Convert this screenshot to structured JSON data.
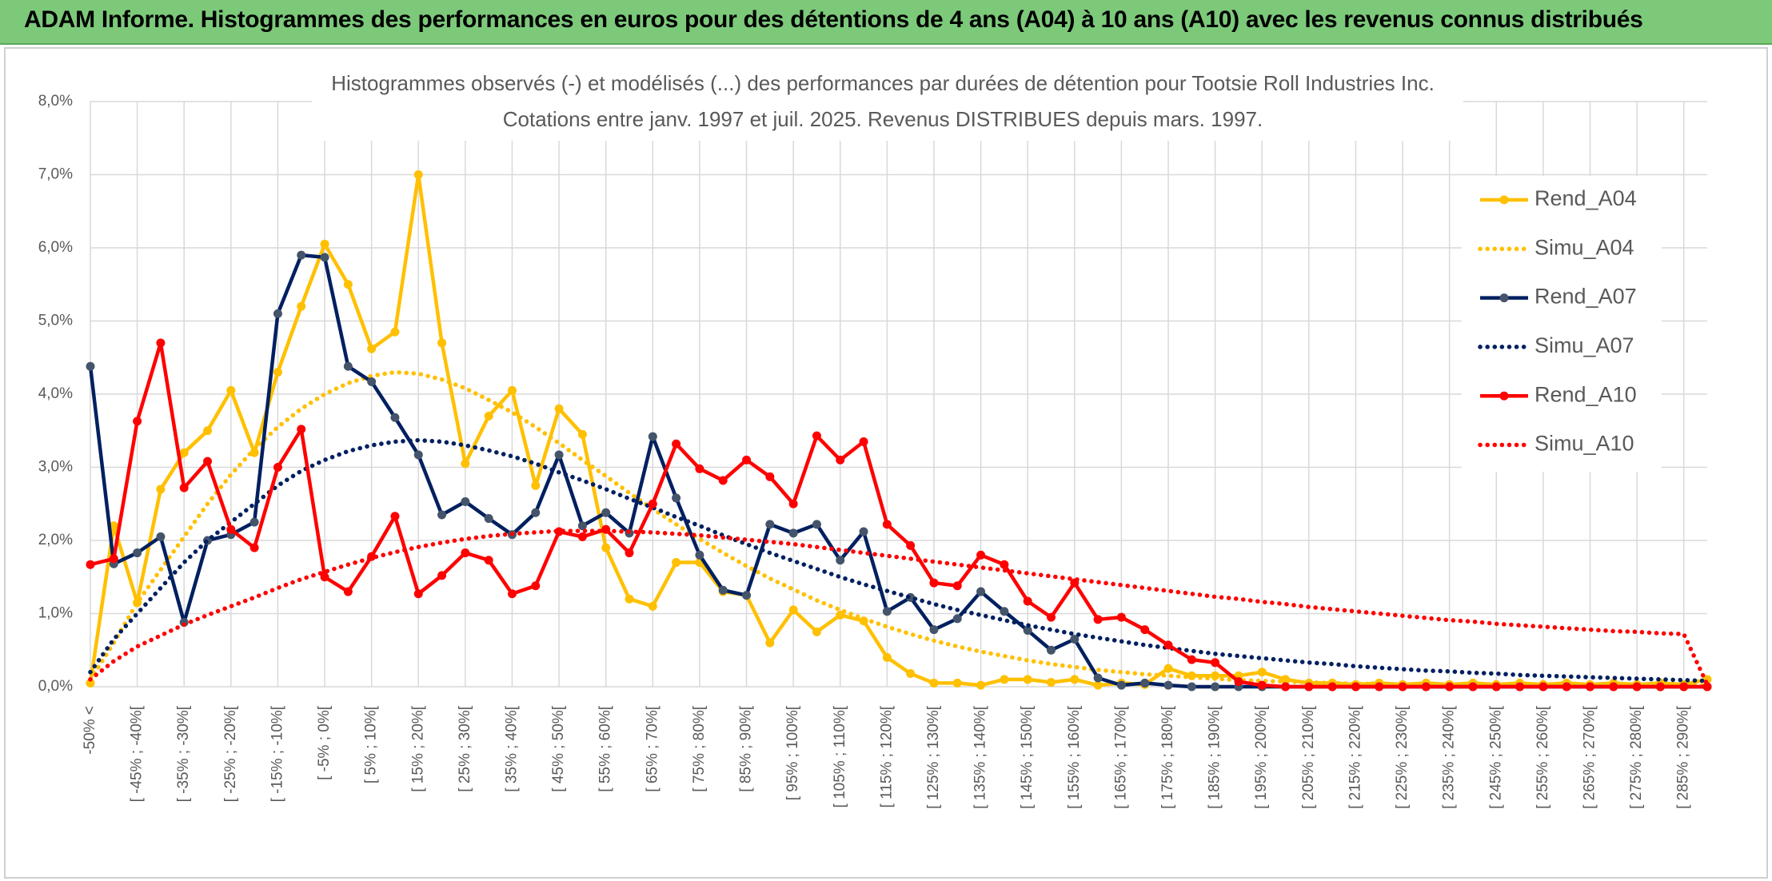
{
  "header": {
    "title": "ADAM Informe. Histogrammes des performances en euros pour des détentions de 4 ans (A04) à 10 ans (A10) avec les revenus connus distribués"
  },
  "chart_data": {
    "type": "line",
    "title": "Histogrammes observés (-) et modélisés (...) des performances par durées de détention pour Tootsie Roll Industries Inc.",
    "subtitle": "Cotations entre janv. 1997 et juil. 2025. Revenus DISTRIBUES depuis mars. 1997.",
    "categories": [
      "-50% <",
      null,
      "[ -45% ; -40%[",
      null,
      "[ -35% ; -30%[",
      null,
      "[ -25% ; -20%[",
      null,
      "[ -15% ; -10%[",
      null,
      "[ -5% ; 0%[",
      null,
      "[ 5% ; 10%[",
      null,
      "[ 15% ; 20%[",
      null,
      "[ 25% ; 30%[",
      null,
      "[ 35% ; 40%[",
      null,
      "[ 45% ; 50%[",
      null,
      "[ 55% ; 60%[",
      null,
      "[ 65% ; 70%[",
      null,
      "[ 75% ; 80%[",
      null,
      "[ 85% ; 90%[",
      null,
      "[ 95% ; 100%[",
      null,
      "[ 105% ; 110%[",
      null,
      "[ 115% ; 120%[",
      null,
      "[ 125% ; 130%[",
      null,
      "[ 135% ; 140%[",
      null,
      "[ 145% ; 150%[",
      null,
      "[ 155% ; 160%[",
      null,
      "[ 165% ; 170%[",
      null,
      "[ 175% ; 180%[",
      null,
      "[ 185% ; 190%[",
      null,
      "[ 195% ; 200%[",
      null,
      "[ 205% ; 210%[",
      null,
      "[ 215% ; 220%[",
      null,
      "[ 225% ; 230%[",
      null,
      "[ 235% ; 240%[",
      null,
      "[ 245% ; 250%[",
      null,
      "[ 255% ; 260%[",
      null,
      "[ 265% ; 270%[",
      null,
      "[ 275% ; 280%[",
      null,
      "[ 285% ; 290%[",
      null
    ],
    "ylim": [
      0,
      8
    ],
    "yticks": [
      {
        "value": 0,
        "label": "0,0%"
      },
      {
        "value": 1,
        "label": "1,0%"
      },
      {
        "value": 2,
        "label": "2,0%"
      },
      {
        "value": 3,
        "label": "3,0%"
      },
      {
        "value": 4,
        "label": "4,0%"
      },
      {
        "value": 5,
        "label": "5,0%"
      },
      {
        "value": 6,
        "label": "6,0%"
      },
      {
        "value": 7,
        "label": "7,0%"
      },
      {
        "value": 8,
        "label": "8,0%"
      }
    ],
    "grid": true,
    "legend": "right",
    "series": [
      {
        "name": "Rend_A04",
        "color": "#ffc000",
        "style": "solid",
        "markers": true,
        "values": [
          0.05,
          2.2,
          1.15,
          2.7,
          3.2,
          3.5,
          4.05,
          3.2,
          4.3,
          5.2,
          6.05,
          5.5,
          4.62,
          4.85,
          7.0,
          4.7,
          3.05,
          3.7,
          4.05,
          2.75,
          3.8,
          3.45,
          1.9,
          1.2,
          1.1,
          1.7,
          1.7,
          1.3,
          1.25,
          0.6,
          1.05,
          0.75,
          0.98,
          0.9,
          0.4,
          0.18,
          0.05,
          0.05,
          0.02,
          0.1,
          0.1,
          0.06,
          0.1,
          0.02,
          0.05,
          0.03,
          0.25,
          0.15,
          0.15,
          0.15,
          0.2,
          0.1,
          0.05,
          0.05,
          0.03,
          0.05,
          0.03,
          0.05,
          0.03,
          0.05,
          0.03,
          0.05,
          0.03,
          0.05,
          0.03,
          0.05,
          0.03,
          0.05,
          0.03,
          0.1
        ]
      },
      {
        "name": "Simu_A04",
        "color": "#ffc000",
        "style": "dotted",
        "markers": false,
        "values": [
          0.1,
          0.6,
          1.15,
          1.6,
          2.05,
          2.5,
          2.9,
          3.25,
          3.55,
          3.8,
          4.0,
          4.15,
          4.25,
          4.3,
          4.28,
          4.2,
          4.08,
          3.92,
          3.75,
          3.55,
          3.33,
          3.1,
          2.88,
          2.65,
          2.43,
          2.22,
          2.02,
          1.83,
          1.65,
          1.48,
          1.33,
          1.18,
          1.05,
          0.93,
          0.82,
          0.72,
          0.63,
          0.55,
          0.48,
          0.42,
          0.36,
          0.31,
          0.27,
          0.23,
          0.2,
          0.17,
          0.15,
          0.13,
          0.11,
          0.09,
          0.08,
          0.07,
          0.06,
          0.05,
          0.04,
          0.04,
          0.03,
          0.03,
          0.03,
          0.02,
          0.02,
          0.02,
          0.02,
          0.02,
          0.02,
          0.02,
          0.02,
          0.02,
          0.02,
          0.02
        ]
      },
      {
        "name": "Rend_A07",
        "color": "#002060",
        "style": "solid",
        "markers": true,
        "values": [
          4.38,
          1.68,
          1.83,
          2.05,
          0.88,
          2.0,
          2.08,
          2.25,
          5.1,
          5.9,
          5.87,
          4.38,
          4.17,
          3.68,
          3.17,
          2.35,
          2.53,
          2.3,
          2.08,
          2.38,
          3.17,
          2.2,
          2.38,
          2.1,
          3.42,
          2.58,
          1.8,
          1.32,
          1.25,
          2.22,
          2.1,
          2.22,
          1.73,
          2.12,
          1.03,
          1.22,
          0.78,
          0.93,
          1.3,
          1.03,
          0.77,
          0.5,
          0.65,
          0.12,
          0.02,
          0.05,
          0.02,
          0,
          0,
          0,
          0,
          0,
          0,
          0,
          0,
          0,
          0,
          0,
          0,
          0,
          0,
          0,
          0,
          0,
          0,
          0,
          0,
          0,
          0,
          0
        ]
      },
      {
        "name": "Simu_A07",
        "color": "#002060",
        "style": "dotted",
        "markers": false,
        "values": [
          0.2,
          0.65,
          1.0,
          1.35,
          1.7,
          2.0,
          2.25,
          2.5,
          2.75,
          2.95,
          3.1,
          3.22,
          3.3,
          3.35,
          3.37,
          3.35,
          3.3,
          3.23,
          3.15,
          3.05,
          2.93,
          2.82,
          2.7,
          2.57,
          2.45,
          2.32,
          2.2,
          2.07,
          1.95,
          1.83,
          1.72,
          1.61,
          1.5,
          1.4,
          1.31,
          1.22,
          1.13,
          1.05,
          0.98,
          0.91,
          0.84,
          0.78,
          0.72,
          0.67,
          0.62,
          0.57,
          0.53,
          0.49,
          0.45,
          0.42,
          0.39,
          0.36,
          0.33,
          0.31,
          0.28,
          0.26,
          0.24,
          0.22,
          0.21,
          0.19,
          0.18,
          0.16,
          0.15,
          0.14,
          0.13,
          0.12,
          0.11,
          0.1,
          0.09,
          0.08
        ]
      },
      {
        "name": "Rend_A10",
        "color": "#ff0000",
        "style": "solid",
        "markers": true,
        "values": [
          1.67,
          1.75,
          3.63,
          4.7,
          2.72,
          3.08,
          2.15,
          1.9,
          3.0,
          3.52,
          1.5,
          1.3,
          1.78,
          2.33,
          1.27,
          1.52,
          1.83,
          1.73,
          1.27,
          1.38,
          2.12,
          2.05,
          2.15,
          1.83,
          2.5,
          3.32,
          2.98,
          2.82,
          3.1,
          2.87,
          2.5,
          3.43,
          3.1,
          3.35,
          2.22,
          1.93,
          1.42,
          1.38,
          1.8,
          1.67,
          1.17,
          0.95,
          1.42,
          0.92,
          0.95,
          0.78,
          0.57,
          0.37,
          0.33,
          0.07,
          0.02,
          0,
          0,
          0,
          0,
          0,
          0,
          0,
          0,
          0,
          0,
          0,
          0,
          0,
          0,
          0,
          0,
          0,
          0,
          0
        ]
      },
      {
        "name": "Simu_A10",
        "color": "#ff0000",
        "style": "dotted",
        "markers": false,
        "values": [
          0.1,
          0.35,
          0.55,
          0.7,
          0.85,
          0.98,
          1.1,
          1.22,
          1.35,
          1.47,
          1.57,
          1.67,
          1.76,
          1.84,
          1.91,
          1.97,
          2.02,
          2.06,
          2.09,
          2.11,
          2.13,
          2.13,
          2.13,
          2.12,
          2.11,
          2.09,
          2.07,
          2.04,
          2.01,
          1.98,
          1.95,
          1.91,
          1.87,
          1.83,
          1.79,
          1.75,
          1.71,
          1.67,
          1.63,
          1.59,
          1.55,
          1.51,
          1.47,
          1.43,
          1.39,
          1.35,
          1.31,
          1.27,
          1.23,
          1.2,
          1.16,
          1.13,
          1.09,
          1.06,
          1.03,
          1.0,
          0.97,
          0.94,
          0.91,
          0.89,
          0.86,
          0.84,
          0.82,
          0.8,
          0.78,
          0.76,
          0.75,
          0.73,
          0.72,
          0.03
        ]
      }
    ]
  }
}
